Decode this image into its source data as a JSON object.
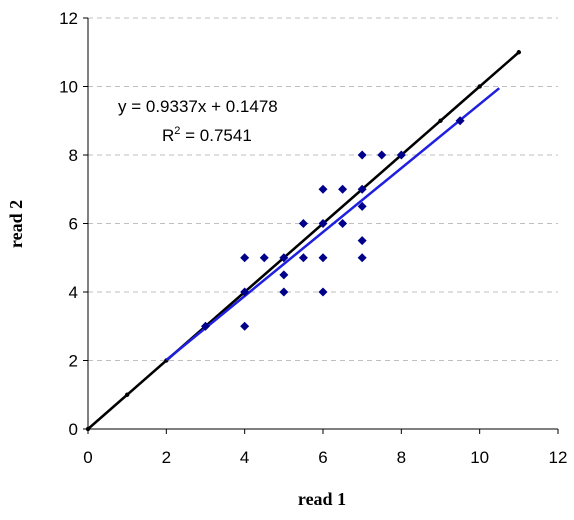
{
  "chart_data": {
    "type": "scatter",
    "xlabel": "read 1",
    "ylabel": "read 2",
    "xlim": [
      0,
      12
    ],
    "ylim": [
      0,
      12
    ],
    "xticks": [
      "0",
      "2",
      "4",
      "6",
      "8",
      "10",
      "12"
    ],
    "yticks": [
      "0",
      "2",
      "4",
      "6",
      "8",
      "10",
      "12"
    ],
    "grid": "horizontal dashed",
    "annotations": {
      "equation": "y = 0.9337x + 0.1478",
      "r2_prefix": "R",
      "r2_sup": "2",
      "r2_value": " = 0.7541"
    },
    "points": [
      {
        "x": 3,
        "y": 3
      },
      {
        "x": 4,
        "y": 3
      },
      {
        "x": 4,
        "y": 4
      },
      {
        "x": 4,
        "y": 5
      },
      {
        "x": 4.5,
        "y": 5
      },
      {
        "x": 5,
        "y": 4
      },
      {
        "x": 5,
        "y": 4.5
      },
      {
        "x": 5,
        "y": 5
      },
      {
        "x": 5.5,
        "y": 5
      },
      {
        "x": 5.5,
        "y": 6
      },
      {
        "x": 6,
        "y": 4
      },
      {
        "x": 6,
        "y": 5
      },
      {
        "x": 6,
        "y": 6
      },
      {
        "x": 6,
        "y": 7
      },
      {
        "x": 6.5,
        "y": 6
      },
      {
        "x": 6.5,
        "y": 7
      },
      {
        "x": 7,
        "y": 5
      },
      {
        "x": 7,
        "y": 5.5
      },
      {
        "x": 7,
        "y": 6.5
      },
      {
        "x": 7,
        "y": 7
      },
      {
        "x": 7,
        "y": 8
      },
      {
        "x": 7.5,
        "y": 8
      },
      {
        "x": 8,
        "y": 8
      },
      {
        "x": 9.5,
        "y": 9
      }
    ],
    "identity_line": {
      "color": "#000000",
      "points": [
        {
          "x": 0,
          "y": 0
        },
        {
          "x": 1,
          "y": 1
        },
        {
          "x": 2,
          "y": 2
        },
        {
          "x": 3,
          "y": 3
        },
        {
          "x": 4,
          "y": 4
        },
        {
          "x": 5,
          "y": 5
        },
        {
          "x": 6,
          "y": 6
        },
        {
          "x": 7,
          "y": 7
        },
        {
          "x": 8,
          "y": 8
        },
        {
          "x": 9,
          "y": 9
        },
        {
          "x": 10,
          "y": 10
        },
        {
          "x": 11,
          "y": 11
        }
      ]
    },
    "trendline": {
      "color": "#1f1fe0",
      "slope": 0.9337,
      "intercept": 0.1478,
      "x_range": [
        2,
        10.5
      ]
    },
    "marker_color": "#00008b"
  }
}
